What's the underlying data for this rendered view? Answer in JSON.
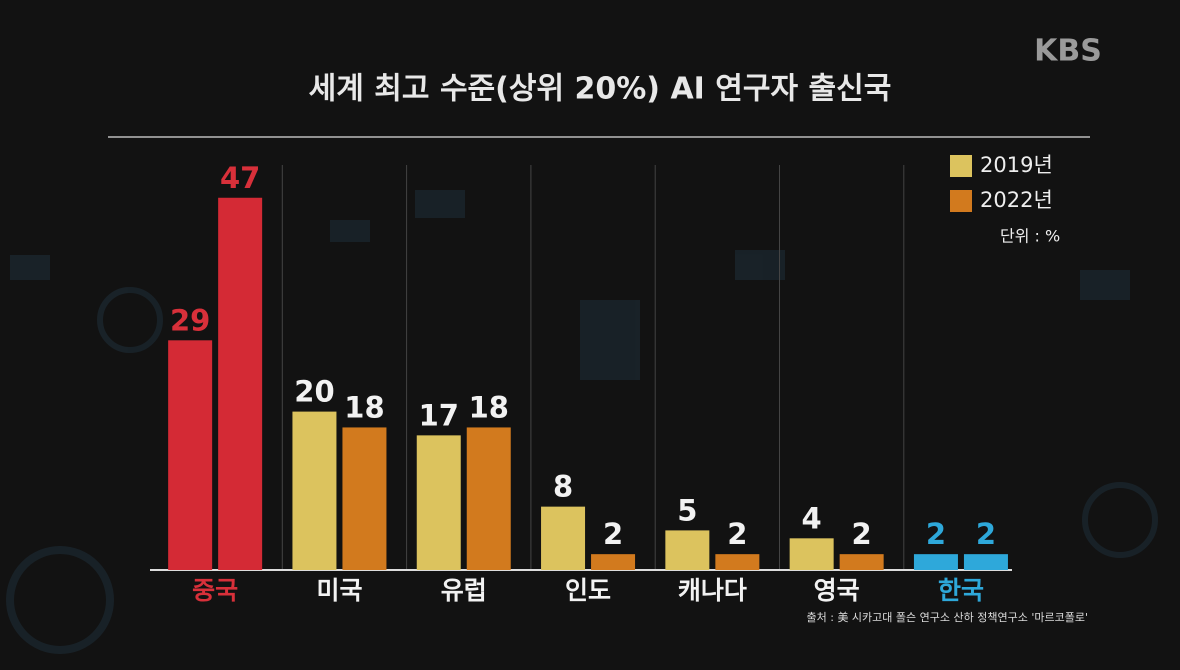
{
  "logo": "KBS",
  "chart_data": {
    "type": "bar",
    "title": "세계 최고 수준(상위 20%) AI 연구자 출신국",
    "categories": [
      "중국",
      "미국",
      "유럽",
      "인도",
      "캐나다",
      "영국",
      "한국"
    ],
    "label_colors": [
      "#d8303a",
      "#f2f2f2",
      "#f2f2f2",
      "#f2f2f2",
      "#f2f2f2",
      "#f2f2f2",
      "#2ea8da"
    ],
    "series": [
      {
        "name": "2019년",
        "color": "#dcc35e",
        "values": [
          29,
          20,
          17,
          8,
          5,
          4,
          2
        ],
        "colors": [
          "#d42a35",
          "#dcc35e",
          "#dcc35e",
          "#dcc35e",
          "#dcc35e",
          "#dcc35e",
          "#2ea8da"
        ]
      },
      {
        "name": "2022년",
        "color": "#d27a1e",
        "values": [
          47,
          18,
          18,
          2,
          2,
          2,
          2
        ],
        "colors": [
          "#d42a35",
          "#d27a1e",
          "#d27a1e",
          "#d27a1e",
          "#d27a1e",
          "#d27a1e",
          "#2ea8da"
        ]
      }
    ],
    "ylim": [
      0,
      50
    ],
    "unit_note": "단위 : %",
    "source": "출처 : 美 시카고대 폴슨 연구소 산하 정책연구소 '마르코폴로'"
  }
}
